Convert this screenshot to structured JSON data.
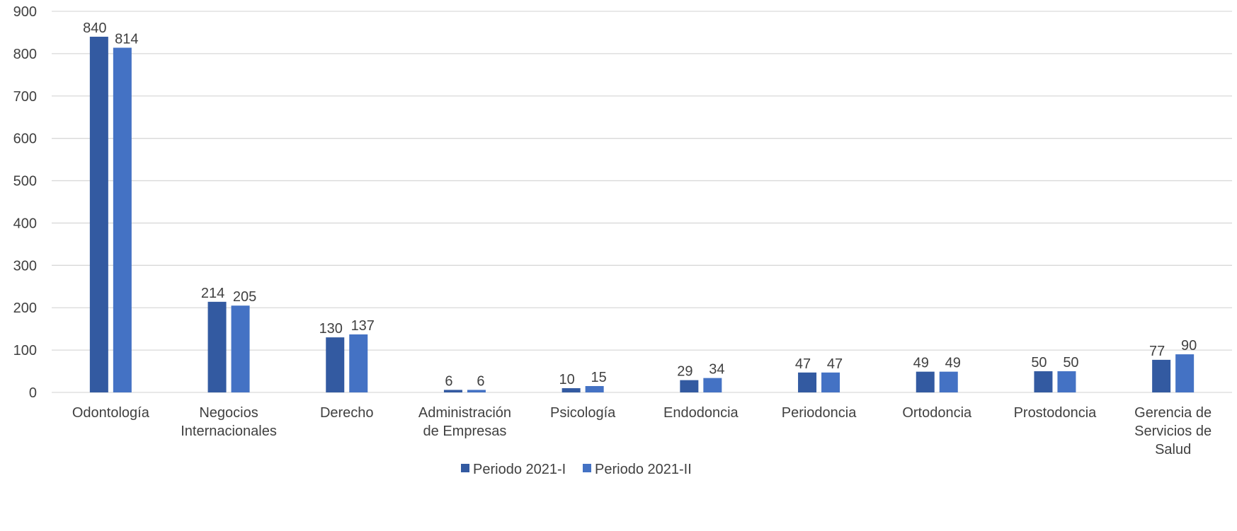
{
  "chart_data": {
    "type": "bar",
    "categories": [
      [
        "Odontología"
      ],
      [
        "Negocios",
        "Internacionales"
      ],
      [
        "Derecho"
      ],
      [
        "Administración",
        "de Empresas"
      ],
      [
        "Psicología"
      ],
      [
        "Endodoncia"
      ],
      [
        "Periodoncia"
      ],
      [
        "Ortodoncia"
      ],
      [
        "Prostodoncia"
      ],
      [
        "Gerencia de",
        "Servicios de",
        "Salud"
      ]
    ],
    "series": [
      {
        "name": "Periodo 2021-I",
        "color": "#335AA1",
        "values": [
          840,
          214,
          130,
          6,
          10,
          29,
          47,
          49,
          50,
          77
        ]
      },
      {
        "name": "Periodo 2021-II",
        "color": "#4472C4",
        "values": [
          814,
          205,
          137,
          6,
          15,
          34,
          47,
          49,
          50,
          90
        ]
      }
    ],
    "ylim": [
      0,
      900
    ],
    "yticks": [
      0,
      100,
      200,
      300,
      400,
      500,
      600,
      700,
      800,
      900
    ],
    "grid": true,
    "gridColor": "#D9D9D9",
    "legend": "bottom-center",
    "title": "",
    "xlabel": "",
    "ylabel": ""
  }
}
